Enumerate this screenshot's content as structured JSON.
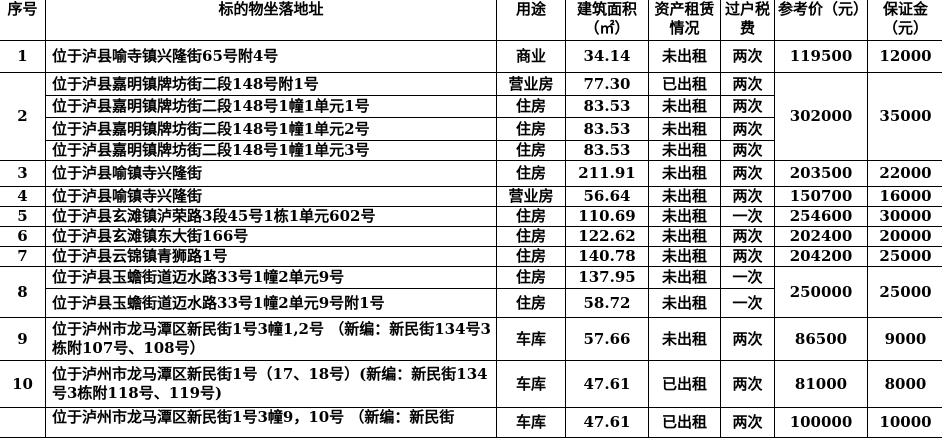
{
  "header": {
    "no": "序号",
    "address": "标的物坐落地址",
    "use": "用途",
    "area": "建筑面积（㎡）",
    "lease": "资产租赁情况",
    "tax": "过户税费",
    "price": "参考价（元）",
    "deposit": "保证金（元）"
  },
  "rows": [
    {
      "no": "1",
      "price": "119500",
      "deposit": "12000",
      "items": [
        {
          "address": "位于泸县喻寺镇兴隆街65号附4号",
          "use": "商业",
          "area": "34.14",
          "lease": "未出租",
          "tax": "两次"
        }
      ]
    },
    {
      "no": "2",
      "price": "302000",
      "deposit": "35000",
      "items": [
        {
          "address": "位于泸县嘉明镇牌坊街二段148号附1号",
          "use": "营业房",
          "area": "77.30",
          "lease": "已出租",
          "tax": "两次"
        },
        {
          "address": "位于泸县嘉明镇牌坊街二段148号1幢1单元1号",
          "use": "住房",
          "area": "83.53",
          "lease": "未出租",
          "tax": "两次"
        },
        {
          "address": "位于泸县嘉明镇牌坊街二段148号1幢1单元2号",
          "use": "住房",
          "area": "83.53",
          "lease": "未出租",
          "tax": "两次"
        },
        {
          "address": "位于泸县嘉明镇牌坊街二段148号1幢1单元3号",
          "use": "住房",
          "area": "83.53",
          "lease": "未出租",
          "tax": "两次"
        }
      ]
    },
    {
      "no": "3",
      "price": "203500",
      "deposit": "22000",
      "items": [
        {
          "address": "位于泸县喻镇寺兴隆街",
          "use": "住房",
          "area": "211.91",
          "lease": "未出租",
          "tax": "两次"
        }
      ]
    },
    {
      "no": "4",
      "price": "150700",
      "deposit": "16000",
      "items": [
        {
          "address": "位于泸县喻镇寺兴隆街",
          "use": "营业房",
          "area": "56.64",
          "lease": "未出租",
          "tax": "两次"
        }
      ]
    },
    {
      "no": "5",
      "price": "254600",
      "deposit": "30000",
      "items": [
        {
          "address": "位于泸县玄滩镇泸荣路3段45号1栋1单元602号",
          "use": "住房",
          "area": "110.69",
          "lease": "未出租",
          "tax": "一次"
        }
      ]
    },
    {
      "no": "6",
      "price": "202400",
      "deposit": "20000",
      "items": [
        {
          "address": "位于泸县玄滩镇东大街166号",
          "use": "住房",
          "area": "122.62",
          "lease": "未出租",
          "tax": "两次"
        }
      ]
    },
    {
      "no": "7",
      "price": "204200",
      "deposit": "25000",
      "items": [
        {
          "address": "位于泸县云锦镇青狮路1号",
          "use": "住房",
          "area": "140.78",
          "lease": "未出租",
          "tax": "两次"
        }
      ]
    },
    {
      "no": "8",
      "price": "250000",
      "deposit": "25000",
      "items": [
        {
          "address": "位于泸县玉蟾街道迈水路33号1幢2单元9号",
          "use": "住房",
          "area": "137.95",
          "lease": "未出租",
          "tax": "一次"
        },
        {
          "address": "位于泸县玉蟾街道迈水路33号1幢2单元9号附1号",
          "use": "住房",
          "area": "58.72",
          "lease": "未出租",
          "tax": "一次"
        }
      ]
    },
    {
      "no": "9",
      "price": "86500",
      "deposit": "9000",
      "items": [
        {
          "address": "位于泸州市龙马潭区新民街1号3幢1,2号 （新编：新民街134号3栋附107号、108号）",
          "use": "车库",
          "area": "57.66",
          "lease": "未出租",
          "tax": "两次"
        }
      ]
    },
    {
      "no": "10",
      "price": "81000",
      "deposit": "8000",
      "items": [
        {
          "address": "位于泸州市龙马潭区新民街1号（17、18号）(新编：新民街134号3栋附118号、119号)",
          "use": "车库",
          "area": "47.61",
          "lease": "已出租",
          "tax": "两次"
        }
      ]
    },
    {
      "no": "",
      "price": "100000",
      "deposit": "10000",
      "items": [
        {
          "address": "位于泸州市龙马潭区新民街1号3幢9，10号 （新编：新民街",
          "use": "车库",
          "area": "47.61",
          "lease": "已出租",
          "tax": "两次"
        }
      ]
    }
  ]
}
